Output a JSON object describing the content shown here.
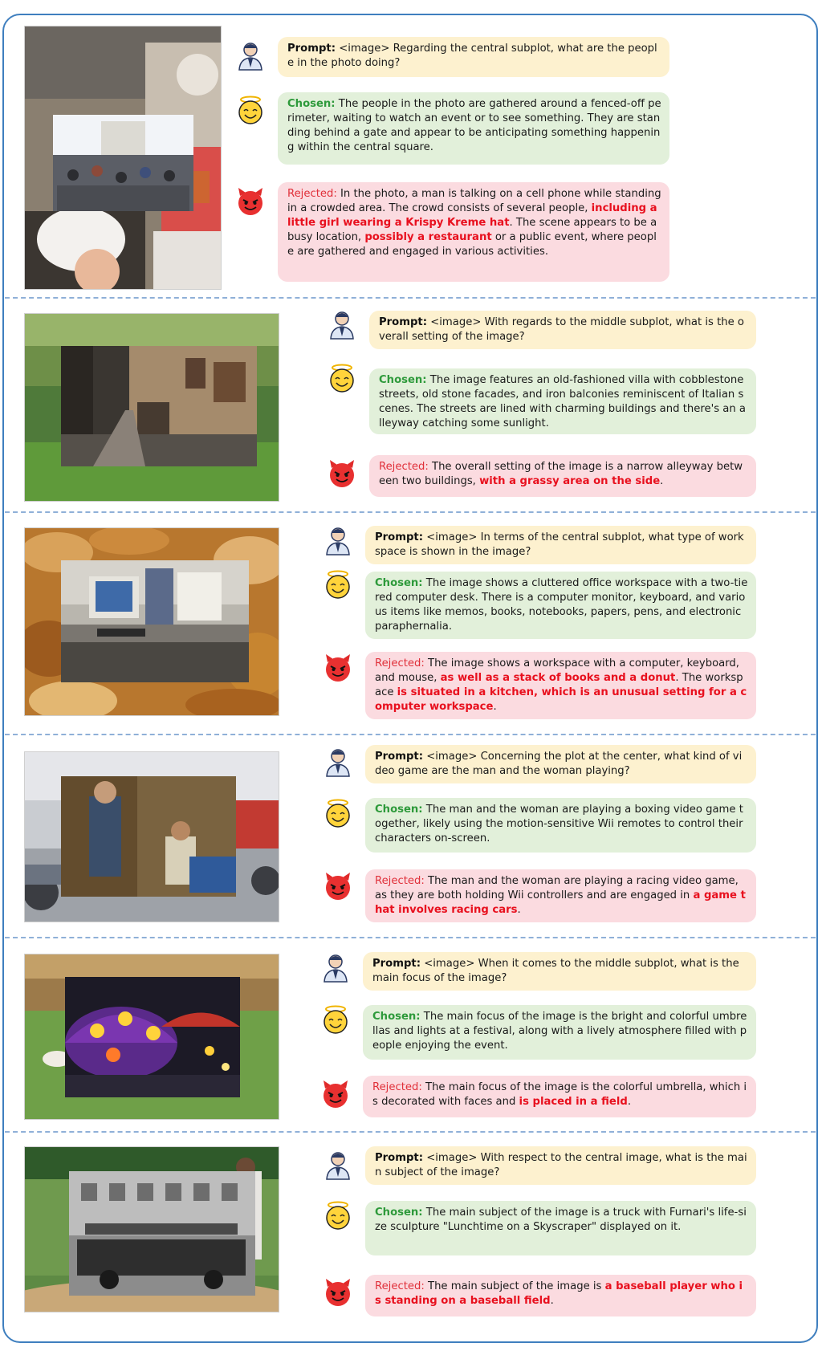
{
  "labels": {
    "prompt": "Prompt:",
    "chosen": "Chosen:",
    "rejected": "Rejected:"
  },
  "colors": {
    "frame": "#3f7fbf",
    "prompt_bg": "#fdf1cf",
    "chosen_bg": "#e2f0da",
    "rejected_bg": "#fbdbe0",
    "chosen_label": "#2e9a3b",
    "rejected_label": "#e0303a",
    "highlight": "#e8101e"
  },
  "icons": {
    "prompt": "user-icon",
    "chosen": "angel-emoji-icon",
    "rejected": "devil-emoji-icon"
  },
  "examples": [
    {
      "prompt": "<image> Regarding the central subplot, what are the people in the photo doing?",
      "chosen": "The people in the photo are gathered around a fenced-off perimeter, waiting to watch an event or to see something. They are standing behind a gate and appear to be anticipating something happening within the central square.",
      "rejected": [
        {
          "text": "In the photo, a man is talking on a cell phone while standing in a crowded area. The crowd consists of several people, "
        },
        {
          "text": "including a little girl wearing a Krispy Kreme hat",
          "hl": true
        },
        {
          "text": ". The scene appears to be a busy location, "
        },
        {
          "text": "possibly a restaurant",
          "hl": true
        },
        {
          "text": " or a public event, where people are gathered and engaged in various activities."
        }
      ]
    },
    {
      "prompt": "<image> With regards to the middle subplot, what is the overall setting of the image?",
      "chosen": "The image features an old-fashioned villa with cobblestone streets, old stone facades, and iron balconies reminiscent of Italian scenes. The streets are lined with charming buildings and there's an alleyway catching some sunlight.",
      "rejected": [
        {
          "text": "The overall setting of the image is a narrow alleyway between two buildings, "
        },
        {
          "text": "with a grassy area on the side",
          "hl": true
        },
        {
          "text": "."
        }
      ]
    },
    {
      "prompt": "<image> In terms of the central subplot, what type of workspace is shown in the image?",
      "chosen": "The image shows a cluttered office workspace with a two-tiered computer desk. There is a computer monitor, keyboard, and various items like memos, books, notebooks, papers, pens, and electronic paraphernalia.",
      "rejected": [
        {
          "text": "The image shows a workspace with a computer, keyboard, and mouse, "
        },
        {
          "text": "as well as a stack of books and a donut",
          "hl": true
        },
        {
          "text": ". The workspace "
        },
        {
          "text": "is situated in a kitchen, which is an unusual setting for a computer workspace",
          "hl": true
        },
        {
          "text": "."
        }
      ]
    },
    {
      "prompt": "<image> Concerning the plot at the center, what kind of video game are the man and the woman playing?",
      "chosen": "The man and the woman are playing a boxing video game together, likely using the motion-sensitive Wii remotes to control their characters on-screen.",
      "rejected": [
        {
          "text": "The man and the woman are playing a racing video game, as they are both holding Wii controllers and are engaged in "
        },
        {
          "text": "a game that involves racing cars",
          "hl": true
        },
        {
          "text": "."
        }
      ]
    },
    {
      "prompt": "<image> When it comes to the middle subplot, what is the main focus of the image?",
      "chosen": "The main focus of the image is the bright and colorful umbrellas and lights at a festival, along with a lively atmosphere filled with people enjoying the event.",
      "rejected": [
        {
          "text": "The main focus of the image is the colorful umbrella, which is decorated with faces and "
        },
        {
          "text": "is placed in a field",
          "hl": true
        },
        {
          "text": "."
        }
      ]
    },
    {
      "prompt": "<image> With respect to the central image, what is the main subject of the image?",
      "chosen": "The main subject of the image is a truck with Furnari's life-size sculpture \"Lunchtime on a Skyscraper\" displayed on it.",
      "rejected": [
        {
          "text": "The main subject of the image is "
        },
        {
          "text": "a baseball player who is standing on a baseball field",
          "hl": true
        },
        {
          "text": "."
        }
      ]
    }
  ]
}
